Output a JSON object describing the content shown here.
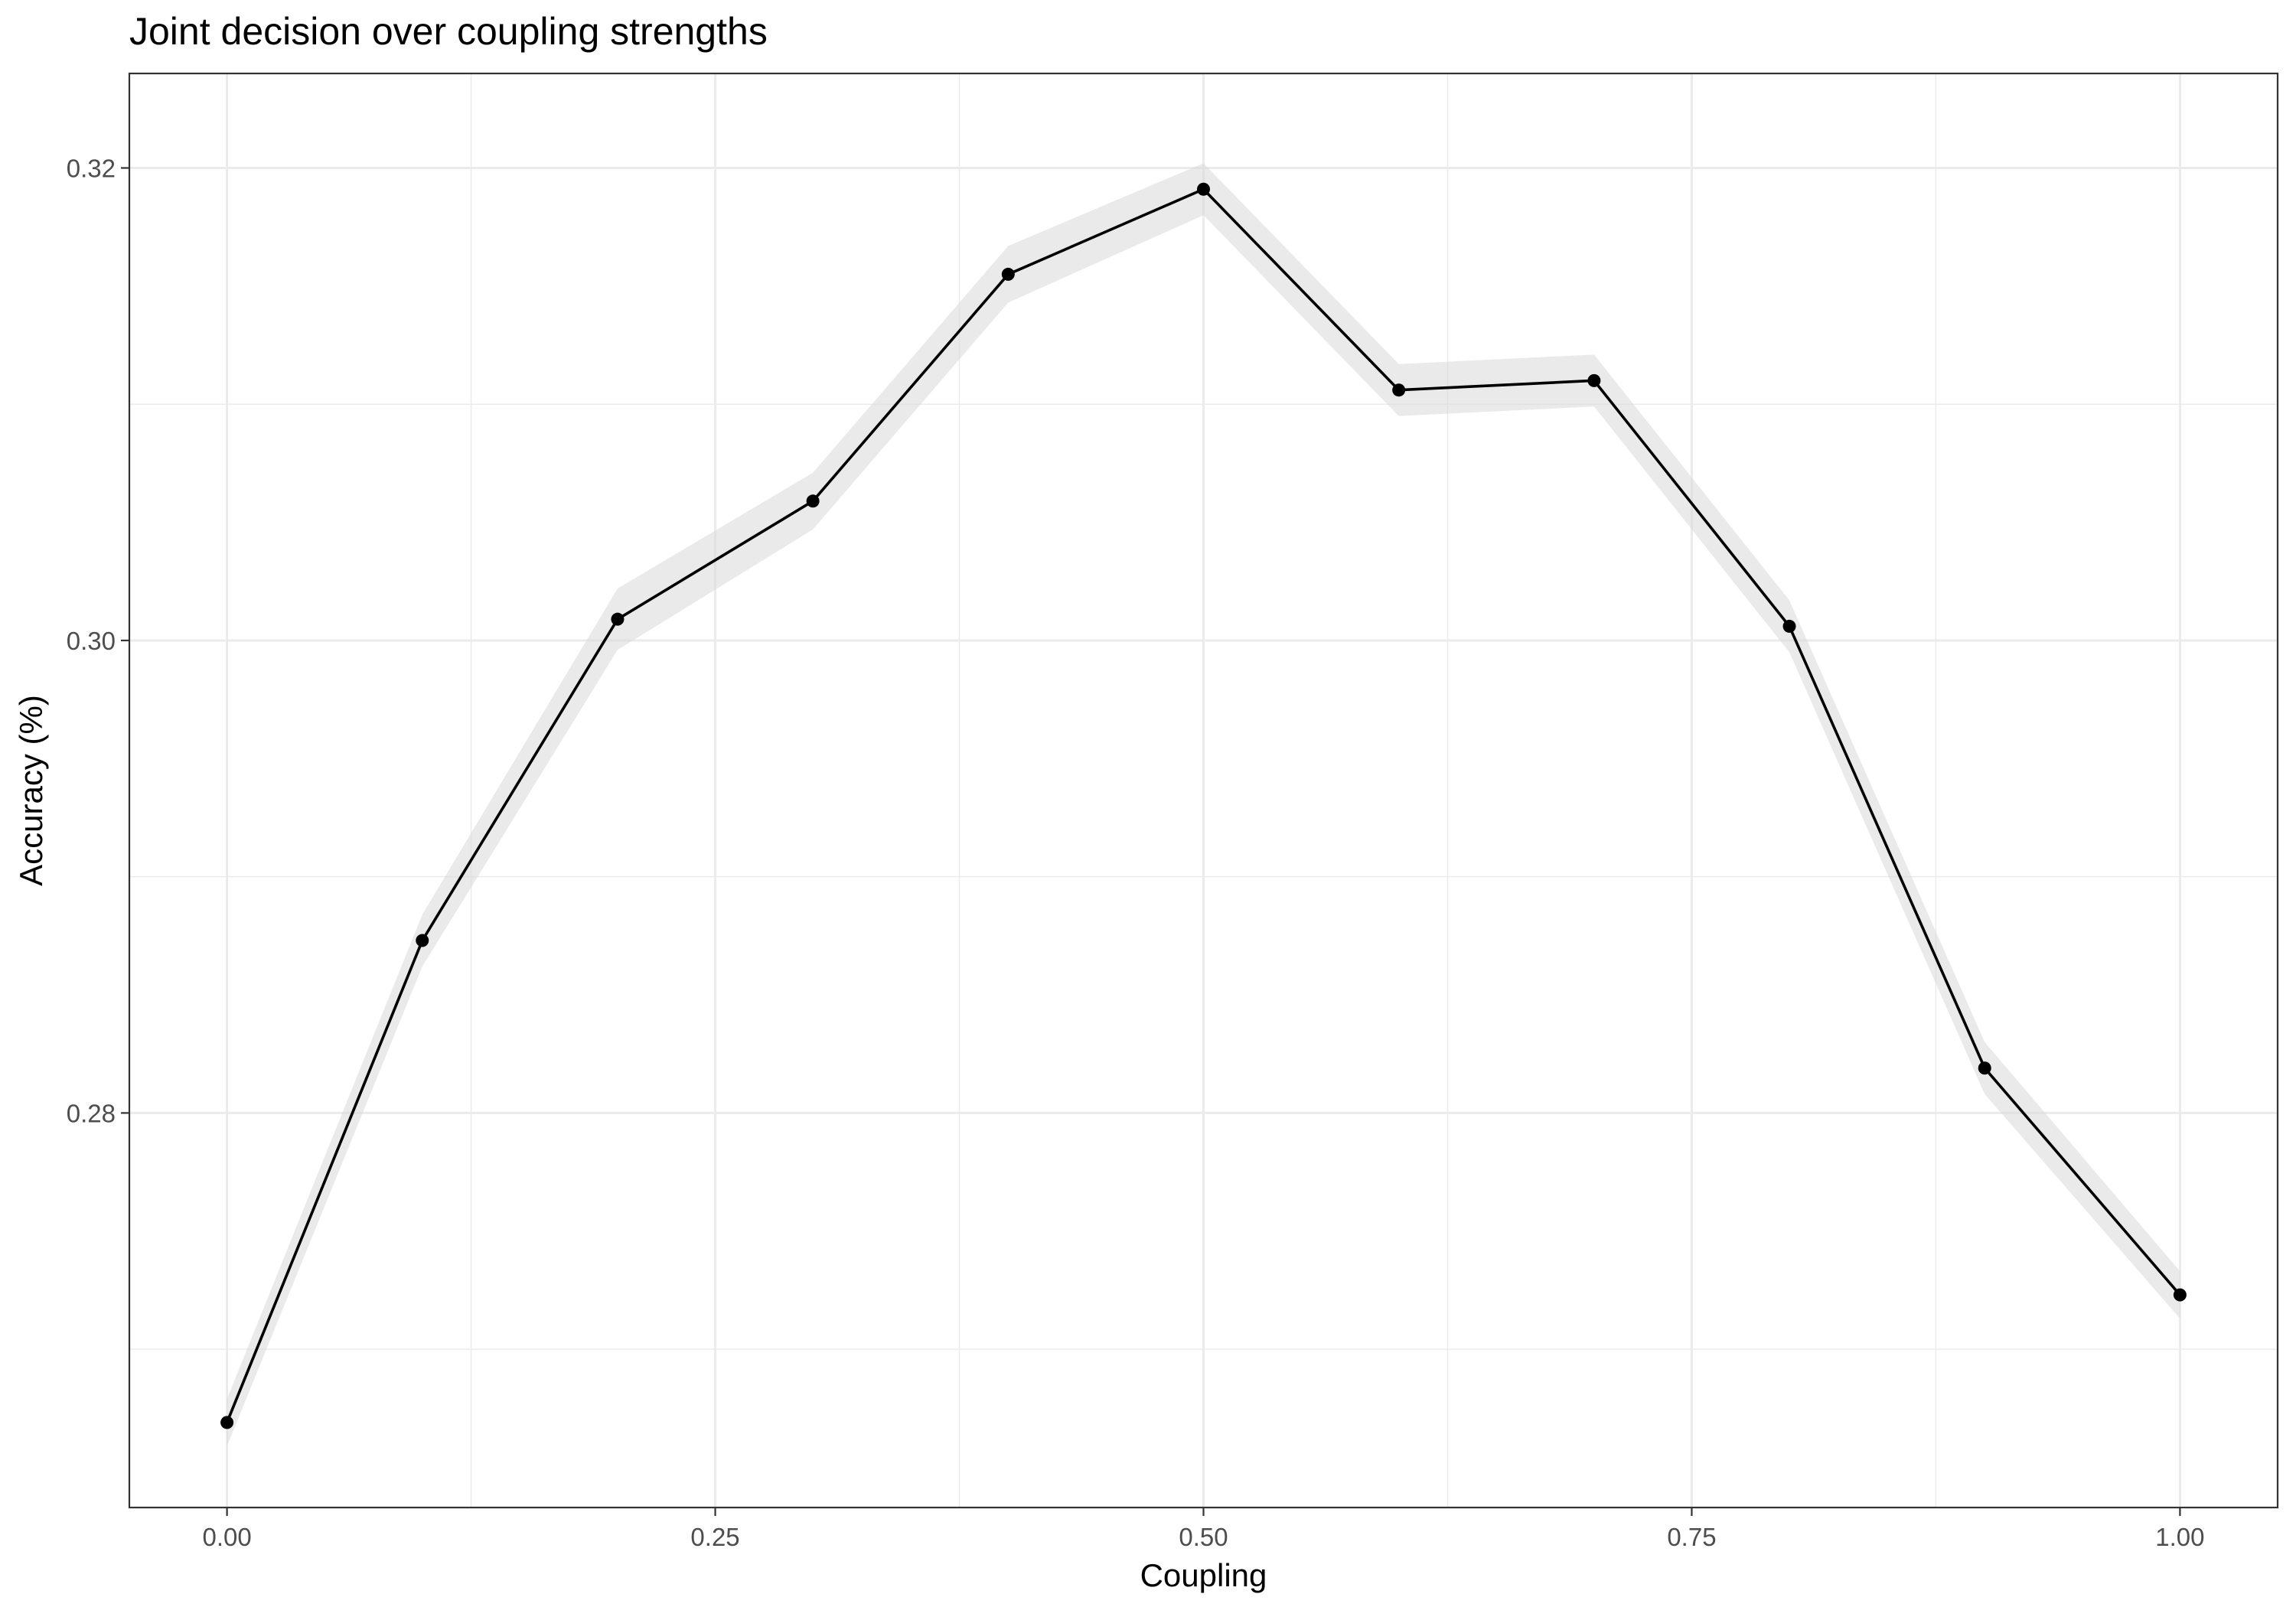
{
  "chart_data": {
    "type": "line",
    "title": "Joint decision over coupling strengths",
    "xlabel": "Coupling",
    "ylabel": "Accuracy (%)",
    "xlim": [
      -0.05,
      1.05
    ],
    "ylim": [
      0.2633,
      0.324
    ],
    "x_ticks": [
      0.0,
      0.25,
      0.5,
      0.75,
      1.0
    ],
    "x_tick_labels": [
      "0.00",
      "0.25",
      "0.50",
      "0.75",
      "1.00"
    ],
    "y_ticks": [
      0.28,
      0.3,
      0.32
    ],
    "y_tick_labels": [
      "0.28",
      "0.30",
      "0.32"
    ],
    "grid": true,
    "series": [
      {
        "x": [
          0.0,
          0.1,
          0.2,
          0.3,
          0.4,
          0.5,
          0.6,
          0.7,
          0.8,
          0.9,
          1.0
        ],
        "y": [
          0.2669,
          0.2873,
          0.3009,
          0.3059,
          0.3155,
          0.3191,
          0.3106,
          0.311,
          0.3006,
          0.2819,
          0.2723
        ],
        "lower": [
          0.2659,
          0.2862,
          0.2996,
          0.3047,
          0.3143,
          0.318,
          0.3095,
          0.3099,
          0.2995,
          0.2808,
          0.2713
        ],
        "upper": [
          0.2679,
          0.2884,
          0.3022,
          0.3071,
          0.3167,
          0.3202,
          0.3117,
          0.3121,
          0.3017,
          0.283,
          0.2733
        ]
      }
    ]
  }
}
